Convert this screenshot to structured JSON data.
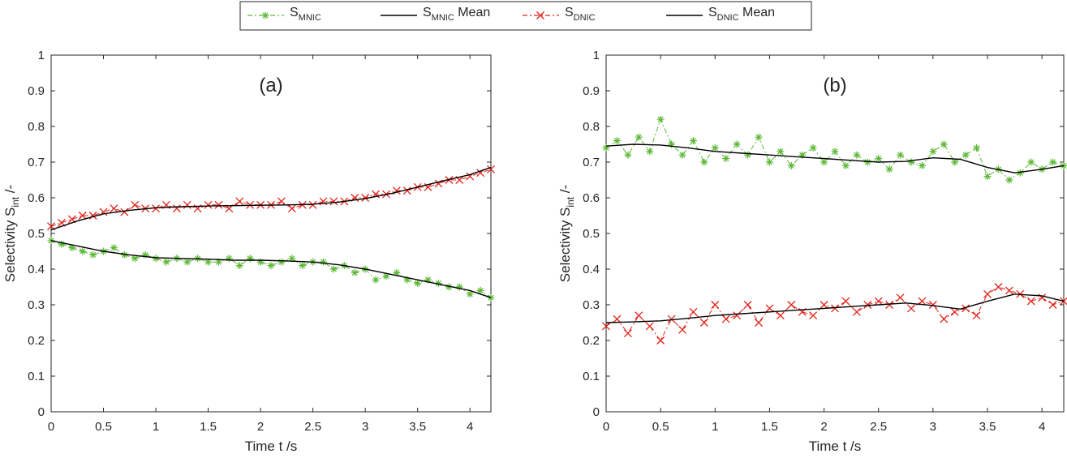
{
  "legend": {
    "placement": "top-center",
    "entries": [
      {
        "base": "S",
        "sub": "MNIC",
        "suffix": "",
        "color": "#5db836",
        "style": "dash-dot with asterisk markers"
      },
      {
        "base": "S",
        "sub": "MNIC",
        "suffix": " Mean",
        "color": "#000000",
        "style": "solid"
      },
      {
        "base": "S",
        "sub": "DNIC",
        "suffix": "",
        "color": "#e2231a",
        "style": "dash-dot with x markers"
      },
      {
        "base": "S",
        "sub": "DNIC",
        "suffix": " Mean",
        "color": "#000000",
        "style": "solid"
      }
    ]
  },
  "chart_data": [
    {
      "type": "line",
      "panel_label": "(a)",
      "xlabel": "Time t /s",
      "ylabel": {
        "base": "Selectivity S",
        "sub": "int",
        "suffix": " /-"
      },
      "xlim": [
        0,
        4.2
      ],
      "ylim": [
        0,
        1
      ],
      "xticks": [
        0,
        0.5,
        1,
        1.5,
        2,
        2.5,
        3,
        3.5,
        4
      ],
      "xtick_labels": [
        "0",
        "0.5",
        "1",
        "1.5",
        "2",
        "2.5",
        "3",
        "3.5",
        "4"
      ],
      "yticks": [
        0,
        0.1,
        0.2,
        0.3,
        0.4,
        0.5,
        0.6,
        0.7,
        0.8,
        0.9,
        1
      ],
      "ytick_labels": [
        "0",
        "0.1",
        "0.2",
        "0.3",
        "0.4",
        "0.5",
        "0.6",
        "0.7",
        "0.8",
        "0.9",
        "1"
      ],
      "grid": false,
      "colors": {
        "mnic": "#5db836",
        "dnic": "#e2231a",
        "mean": "#000000"
      },
      "series": [
        {
          "key": "mnic",
          "marker": "asterisk",
          "x": [
            0,
            0.1,
            0.2,
            0.3,
            0.4,
            0.5,
            0.6,
            0.7,
            0.8,
            0.9,
            1.0,
            1.1,
            1.2,
            1.3,
            1.4,
            1.5,
            1.6,
            1.7,
            1.8,
            1.9,
            2.0,
            2.1,
            2.2,
            2.3,
            2.4,
            2.5,
            2.6,
            2.7,
            2.8,
            2.9,
            3.0,
            3.1,
            3.2,
            3.3,
            3.4,
            3.5,
            3.6,
            3.7,
            3.8,
            3.9,
            4.0,
            4.1,
            4.2
          ],
          "y": [
            0.48,
            0.47,
            0.46,
            0.45,
            0.44,
            0.45,
            0.46,
            0.44,
            0.43,
            0.44,
            0.43,
            0.42,
            0.43,
            0.42,
            0.43,
            0.42,
            0.42,
            0.43,
            0.41,
            0.43,
            0.42,
            0.41,
            0.42,
            0.43,
            0.41,
            0.42,
            0.42,
            0.4,
            0.41,
            0.39,
            0.4,
            0.37,
            0.38,
            0.39,
            0.37,
            0.36,
            0.37,
            0.36,
            0.35,
            0.35,
            0.33,
            0.34,
            0.32
          ]
        },
        {
          "key": "mnic_mean",
          "x": [
            0,
            0.25,
            0.5,
            0.75,
            1.0,
            1.25,
            1.5,
            1.75,
            2.0,
            2.25,
            2.5,
            2.75,
            3.0,
            3.25,
            3.5,
            3.75,
            4.0,
            4.2
          ],
          "y": [
            0.48,
            0.465,
            0.45,
            0.44,
            0.432,
            0.43,
            0.428,
            0.425,
            0.425,
            0.423,
            0.42,
            0.412,
            0.4,
            0.385,
            0.37,
            0.355,
            0.34,
            0.32
          ]
        },
        {
          "key": "dnic",
          "marker": "x",
          "x": [
            0,
            0.1,
            0.2,
            0.3,
            0.4,
            0.5,
            0.6,
            0.7,
            0.8,
            0.9,
            1.0,
            1.1,
            1.2,
            1.3,
            1.4,
            1.5,
            1.6,
            1.7,
            1.8,
            1.9,
            2.0,
            2.1,
            2.2,
            2.3,
            2.4,
            2.5,
            2.6,
            2.7,
            2.8,
            2.9,
            3.0,
            3.1,
            3.2,
            3.3,
            3.4,
            3.5,
            3.6,
            3.7,
            3.8,
            3.9,
            4.0,
            4.1,
            4.2
          ],
          "y": [
            0.52,
            0.53,
            0.54,
            0.55,
            0.55,
            0.56,
            0.57,
            0.56,
            0.58,
            0.57,
            0.57,
            0.58,
            0.57,
            0.58,
            0.57,
            0.58,
            0.58,
            0.57,
            0.59,
            0.58,
            0.58,
            0.58,
            0.59,
            0.57,
            0.58,
            0.58,
            0.59,
            0.59,
            0.59,
            0.6,
            0.6,
            0.61,
            0.61,
            0.62,
            0.62,
            0.63,
            0.63,
            0.64,
            0.65,
            0.65,
            0.66,
            0.67,
            0.68
          ]
        },
        {
          "key": "dnic_mean",
          "x": [
            0,
            0.25,
            0.5,
            0.75,
            1.0,
            1.25,
            1.5,
            1.75,
            2.0,
            2.25,
            2.5,
            2.75,
            3.0,
            3.25,
            3.5,
            3.75,
            4.0,
            4.2
          ],
          "y": [
            0.51,
            0.535,
            0.555,
            0.565,
            0.572,
            0.575,
            0.577,
            0.578,
            0.579,
            0.58,
            0.582,
            0.588,
            0.598,
            0.612,
            0.63,
            0.648,
            0.665,
            0.685
          ]
        }
      ]
    },
    {
      "type": "line",
      "panel_label": "(b)",
      "xlabel": "Time t /s",
      "ylabel": {
        "base": "Selectivity S",
        "sub": "int",
        "suffix": " /-"
      },
      "xlim": [
        0,
        4.2
      ],
      "ylim": [
        0,
        1
      ],
      "xticks": [
        0,
        0.5,
        1,
        1.5,
        2,
        2.5,
        3,
        3.5,
        4
      ],
      "xtick_labels": [
        "0",
        "0.5",
        "1",
        "1.5",
        "2",
        "2.5",
        "3",
        "3.5",
        "4"
      ],
      "yticks": [
        0,
        0.1,
        0.2,
        0.3,
        0.4,
        0.5,
        0.6,
        0.7,
        0.8,
        0.9,
        1
      ],
      "ytick_labels": [
        "0",
        "0.1",
        "0.2",
        "0.3",
        "0.4",
        "0.5",
        "0.6",
        "0.7",
        "0.8",
        "0.9",
        "1"
      ],
      "grid": false,
      "colors": {
        "mnic": "#5db836",
        "dnic": "#e2231a",
        "mean": "#000000"
      },
      "series": [
        {
          "key": "mnic",
          "marker": "asterisk",
          "x": [
            0,
            0.1,
            0.2,
            0.3,
            0.4,
            0.5,
            0.6,
            0.7,
            0.8,
            0.9,
            1.0,
            1.1,
            1.2,
            1.3,
            1.4,
            1.5,
            1.6,
            1.7,
            1.8,
            1.9,
            2.0,
            2.1,
            2.2,
            2.3,
            2.4,
            2.5,
            2.6,
            2.7,
            2.8,
            2.9,
            3.0,
            3.1,
            3.2,
            3.3,
            3.4,
            3.5,
            3.6,
            3.7,
            3.8,
            3.9,
            4.0,
            4.1,
            4.2
          ],
          "y": [
            0.74,
            0.76,
            0.72,
            0.77,
            0.73,
            0.82,
            0.75,
            0.72,
            0.76,
            0.7,
            0.74,
            0.71,
            0.75,
            0.72,
            0.77,
            0.7,
            0.73,
            0.69,
            0.72,
            0.74,
            0.7,
            0.73,
            0.69,
            0.72,
            0.7,
            0.71,
            0.68,
            0.72,
            0.7,
            0.69,
            0.73,
            0.75,
            0.7,
            0.72,
            0.74,
            0.66,
            0.68,
            0.65,
            0.67,
            0.7,
            0.68,
            0.7,
            0.69
          ]
        },
        {
          "key": "mnic_mean",
          "x": [
            0,
            0.25,
            0.5,
            0.75,
            1.0,
            1.25,
            1.5,
            1.75,
            2.0,
            2.25,
            2.5,
            2.75,
            3.0,
            3.25,
            3.5,
            3.75,
            4.0,
            4.2
          ],
          "y": [
            0.745,
            0.75,
            0.748,
            0.74,
            0.73,
            0.725,
            0.72,
            0.715,
            0.71,
            0.705,
            0.7,
            0.702,
            0.712,
            0.708,
            0.685,
            0.67,
            0.68,
            0.69
          ]
        },
        {
          "key": "dnic",
          "marker": "x",
          "x": [
            0,
            0.1,
            0.2,
            0.3,
            0.4,
            0.5,
            0.6,
            0.7,
            0.8,
            0.9,
            1.0,
            1.1,
            1.2,
            1.3,
            1.4,
            1.5,
            1.6,
            1.7,
            1.8,
            1.9,
            2.0,
            2.1,
            2.2,
            2.3,
            2.4,
            2.5,
            2.6,
            2.7,
            2.8,
            2.9,
            3.0,
            3.1,
            3.2,
            3.3,
            3.4,
            3.5,
            3.6,
            3.7,
            3.8,
            3.9,
            4.0,
            4.1,
            4.2
          ],
          "y": [
            0.24,
            0.26,
            0.22,
            0.27,
            0.24,
            0.2,
            0.26,
            0.23,
            0.28,
            0.25,
            0.3,
            0.26,
            0.27,
            0.3,
            0.25,
            0.29,
            0.27,
            0.3,
            0.28,
            0.27,
            0.3,
            0.29,
            0.31,
            0.28,
            0.3,
            0.31,
            0.3,
            0.32,
            0.29,
            0.31,
            0.3,
            0.26,
            0.28,
            0.29,
            0.27,
            0.33,
            0.35,
            0.34,
            0.33,
            0.31,
            0.32,
            0.3,
            0.31
          ]
        },
        {
          "key": "dnic_mean",
          "x": [
            0,
            0.25,
            0.5,
            0.75,
            1.0,
            1.25,
            1.5,
            1.75,
            2.0,
            2.25,
            2.5,
            2.75,
            3.0,
            3.25,
            3.5,
            3.75,
            4.0,
            4.2
          ],
          "y": [
            0.25,
            0.252,
            0.255,
            0.262,
            0.27,
            0.275,
            0.28,
            0.285,
            0.29,
            0.295,
            0.3,
            0.305,
            0.298,
            0.288,
            0.31,
            0.33,
            0.325,
            0.31
          ]
        }
      ]
    }
  ]
}
